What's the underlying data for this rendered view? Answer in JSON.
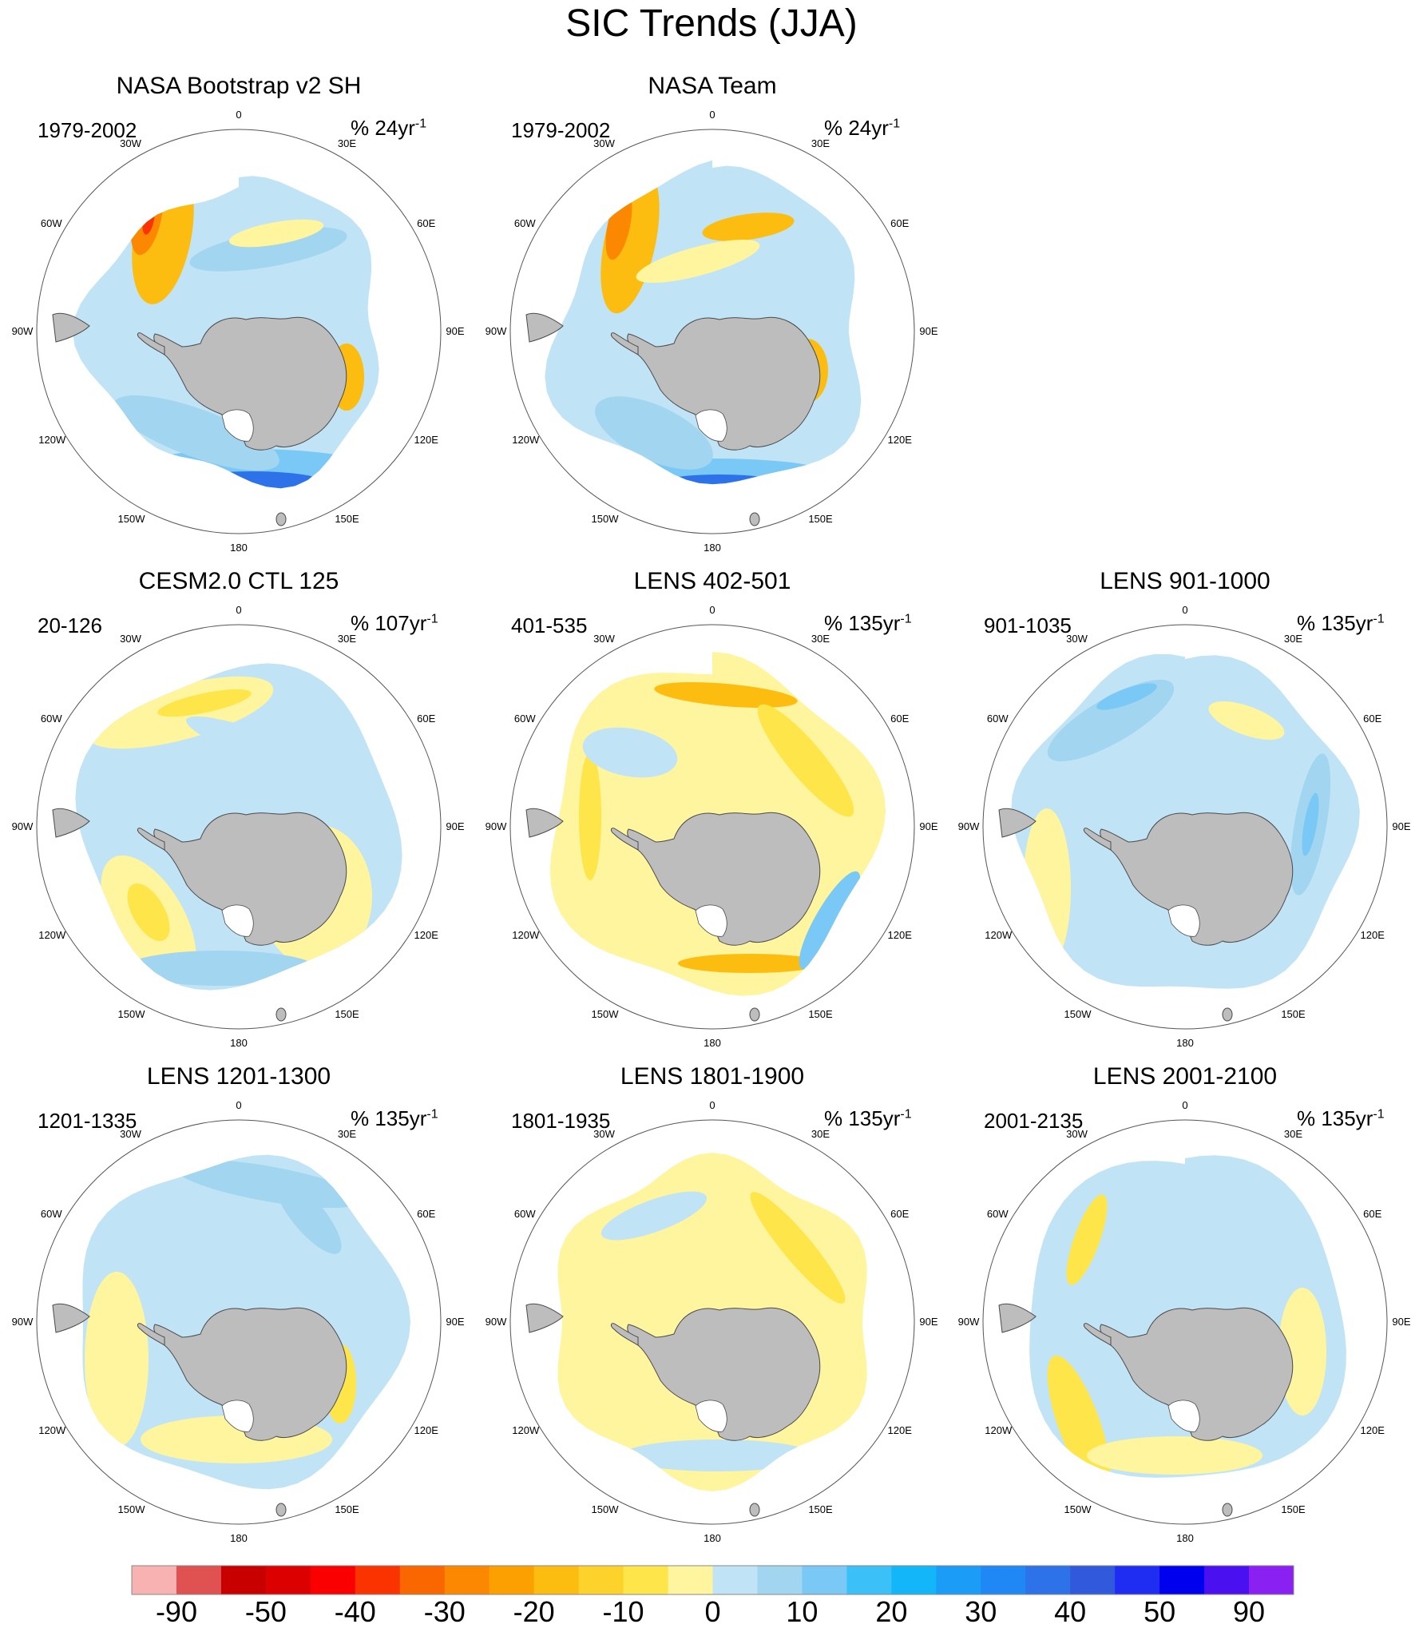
{
  "title": "SIC Trends (JJA)",
  "lon_labels": [
    "0",
    "30E",
    "60E",
    "90E",
    "120E",
    "150E",
    "180",
    "150W",
    "120W",
    "90W",
    "60W",
    "30W"
  ],
  "panels": [
    {
      "title": "NASA Bootstrap v2 SH",
      "period": "1979-2002",
      "units": "% 24yr",
      "units_exp": "-1",
      "style": "obs1"
    },
    {
      "title": "NASA Team",
      "period": "1979-2002",
      "units": "% 24yr",
      "units_exp": "-1",
      "style": "obs2"
    },
    {
      "title": "CESM2.0 CTL 125",
      "period": "20-126",
      "units": "% 107yr",
      "units_exp": "-1",
      "style": "m1"
    },
    {
      "title": "LENS 402-501",
      "period": "401-535",
      "units": "% 135yr",
      "units_exp": "-1",
      "style": "m2"
    },
    {
      "title": "LENS 901-1000",
      "period": "901-1035",
      "units": "% 135yr",
      "units_exp": "-1",
      "style": "m3"
    },
    {
      "title": "LENS 1201-1300",
      "period": "1201-1335",
      "units": "% 135yr",
      "units_exp": "-1",
      "style": "m4"
    },
    {
      "title": "LENS 1801-1900",
      "period": "1801-1935",
      "units": "% 135yr",
      "units_exp": "-1",
      "style": "m5"
    },
    {
      "title": "LENS 2001-2100",
      "period": "2001-2135",
      "units": "% 135yr",
      "units_exp": "-1",
      "style": "m6"
    }
  ],
  "colorbar": {
    "colors": [
      "#f9b2b2",
      "#e05151",
      "#c90000",
      "#dc0000",
      "#fa0000",
      "#fa3300",
      "#fa6600",
      "#fb8800",
      "#fba000",
      "#fcbc10",
      "#fdd22a",
      "#fee54a",
      "#fff59e",
      "#c0e4f5",
      "#a1d5f0",
      "#7ac8f5",
      "#3cc0f8",
      "#13b6f9",
      "#1a9cf7",
      "#2088f5",
      "#2e72ea",
      "#3159dc",
      "#1f2cf2",
      "#0000ee",
      "#4b10f0",
      "#8a20f2"
    ],
    "labels": [
      "-90",
      "-50",
      "-40",
      "-30",
      "-20",
      "-10",
      "0",
      "10",
      "20",
      "30",
      "40",
      "50",
      "90"
    ]
  },
  "colors": {
    "land": "#bdbdbd",
    "land_edge": "#4a4a4a",
    "yellow_light": "#fff59e",
    "yellow": "#fee54a",
    "orange": "#fcbc10",
    "orange_dark": "#fb8800",
    "red": "#fa3300",
    "blue_light": "#c0e4f5",
    "blue": "#a1d5f0",
    "blue_mid": "#7ac8f5",
    "blue_dark": "#3cc0f8",
    "blue_deep": "#2e72ea"
  }
}
